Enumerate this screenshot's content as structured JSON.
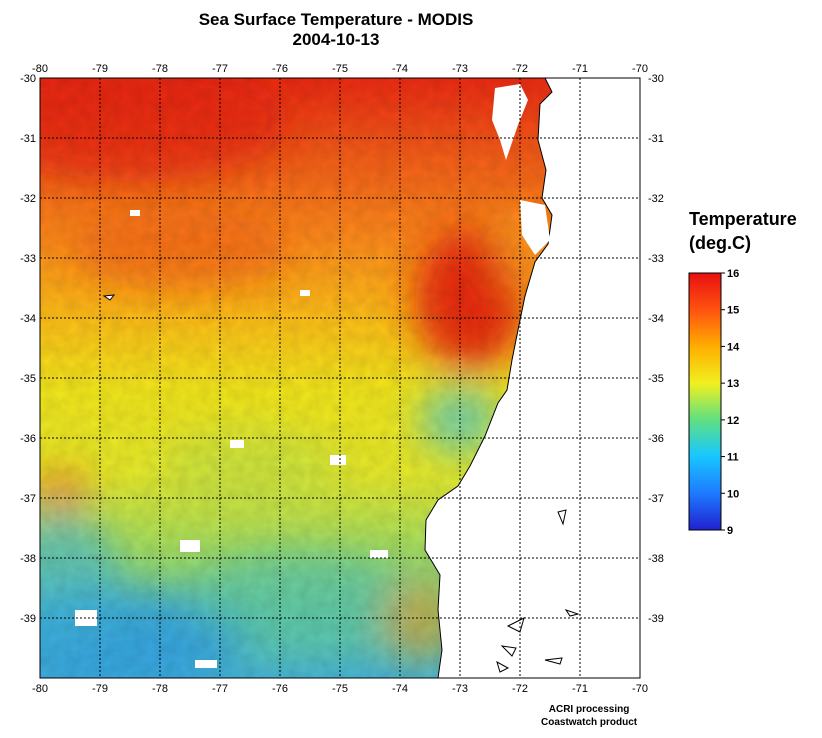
{
  "title": {
    "line1": "Sea Surface Temperature - MODIS",
    "line2": "2004-10-13"
  },
  "map": {
    "lon_ticks": [
      "-80",
      "-79",
      "-78",
      "-77",
      "-76",
      "-75",
      "-74",
      "-73",
      "-72",
      "-71",
      "-70"
    ],
    "lat_ticks": [
      "-30",
      "-31",
      "-32",
      "-33",
      "-34",
      "-35",
      "-36",
      "-37",
      "-38",
      "-39"
    ],
    "lon_range": [
      -80,
      -70
    ],
    "lat_range": [
      -40,
      -30
    ],
    "grid": "dotted",
    "land_color": "#ffffff",
    "cloud_color": "#ffffff"
  },
  "legend": {
    "title_line1": "Temperature",
    "title_line2": "(deg.C)",
    "ticks": [
      "16",
      "15",
      "14",
      "13",
      "12",
      "11",
      "10",
      "9"
    ],
    "min": 9,
    "max": 16,
    "colors": [
      "#2020d0",
      "#1e78ff",
      "#18c8ff",
      "#60e080",
      "#f0f020",
      "#ffb000",
      "#ff5010",
      "#e81010"
    ]
  },
  "credits": {
    "line1": "ACRI processing",
    "line2": "Coastwatch product"
  }
}
